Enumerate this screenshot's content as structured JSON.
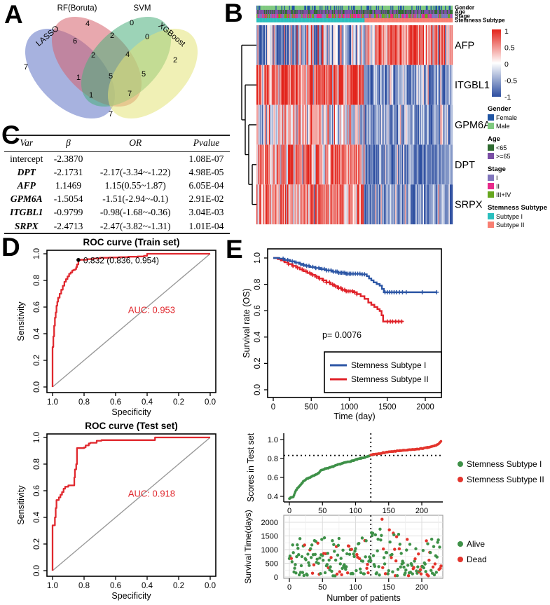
{
  "panels": {
    "A": {
      "letter": "A"
    },
    "B": {
      "letter": "B"
    },
    "C": {
      "letter": "C"
    },
    "D": {
      "letter": "D"
    },
    "E": {
      "letter": "E"
    }
  },
  "chart_data": [
    {
      "id": "venn",
      "type": "venn4",
      "sets": [
        {
          "name": "LASSO",
          "color": "#5F72C4"
        },
        {
          "name": "RF(Boruta)",
          "color": "#D5606C"
        },
        {
          "name": "SVM",
          "color": "#4BAF7C"
        },
        {
          "name": "XGBoost",
          "color": "#E4E478"
        }
      ],
      "regions": [
        {
          "sets": [
            "LASSO"
          ],
          "count": 7
        },
        {
          "sets": [
            "RF(Boruta)"
          ],
          "count": 4
        },
        {
          "sets": [
            "SVM"
          ],
          "count": 0
        },
        {
          "sets": [
            "XGBoost"
          ],
          "count": 2
        },
        {
          "sets": [
            "LASSO",
            "RF(Boruta)"
          ],
          "count": 6
        },
        {
          "sets": [
            "RF(Boruta)",
            "SVM"
          ],
          "count": 2
        },
        {
          "sets": [
            "SVM",
            "XGBoost"
          ],
          "count": 0
        },
        {
          "sets": [
            "LASSO",
            "SVM"
          ],
          "count": 1
        },
        {
          "sets": [
            "RF(Boruta)",
            "XGBoost"
          ],
          "count": 5
        },
        {
          "sets": [
            "LASSO",
            "XGBoost"
          ],
          "count": 7
        },
        {
          "sets": [
            "LASSO",
            "RF(Boruta)",
            "SVM"
          ],
          "count": 2
        },
        {
          "sets": [
            "RF(Boruta)",
            "SVM",
            "XGBoost"
          ],
          "count": 4
        },
        {
          "sets": [
            "LASSO",
            "SVM",
            "XGBoost"
          ],
          "count": 1
        },
        {
          "sets": [
            "LASSO",
            "RF(Boruta)",
            "XGBoost"
          ],
          "count": 7
        },
        {
          "sets": [
            "LASSO",
            "RF(Boruta)",
            "SVM",
            "XGBoost"
          ],
          "count": 5
        }
      ]
    },
    {
      "id": "heatmap",
      "type": "heatmap",
      "seed": 1234,
      "columns": 205,
      "split_index": 113,
      "genes": [
        {
          "name": "AFP",
          "left": [
            -0.35,
            0.55
          ],
          "right": [
            0.5,
            0.5
          ]
        },
        {
          "name": "ITGBL1",
          "left": [
            0.6,
            0.5
          ],
          "right": [
            -0.55,
            0.45
          ]
        },
        {
          "name": "GPM6A",
          "left": [
            0.1,
            0.5
          ],
          "right": [
            -0.5,
            0.35
          ]
        },
        {
          "name": "DPT",
          "left": [
            0.5,
            0.45
          ],
          "right": [
            -0.6,
            0.35
          ]
        },
        {
          "name": "SRPX",
          "left": [
            0.45,
            0.45
          ],
          "right": [
            -0.55,
            0.4
          ]
        }
      ],
      "annotations": {
        "rows": [
          "Gender",
          "Age",
          "Stage",
          "Stemness Subtype"
        ],
        "gender": {
          "labels": [
            "Female",
            "Male"
          ],
          "colors": [
            "#2155A3",
            "#7FC97F"
          ],
          "probs": [
            0.3,
            0.7
          ]
        },
        "age": {
          "labels": [
            "<65",
            ">=65"
          ],
          "colors": [
            "#2F6B31",
            "#7A4FA5"
          ],
          "probs": [
            0.45,
            0.55
          ]
        },
        "stage": {
          "labels": [
            "I",
            "II",
            "III+IV"
          ],
          "colors": [
            "#8075BC",
            "#E7298A",
            "#66A61E"
          ],
          "probs": [
            0.35,
            0.35,
            0.3
          ]
        },
        "subtype": {
          "labels": [
            "Subtype I",
            "Subtype II"
          ],
          "colors": [
            "#2BBFBE",
            "#F87F72"
          ]
        }
      },
      "colorbar": {
        "ticks": [
          "1",
          "0.5",
          "0",
          "-0.5",
          "-1"
        ],
        "top_color": "#E2231A",
        "mid_color": "#FFFFFF",
        "bottom_color": "#2D4EA0"
      }
    },
    {
      "id": "table",
      "type": "table",
      "headers": [
        "Var",
        "β",
        "OR",
        "Pvalue"
      ],
      "rows": [
        [
          "intercept",
          "-2.3870",
          "",
          "1.08E-07"
        ],
        [
          "DPT",
          "-2.1731",
          "-2.17(-3.34~-1.22)",
          "4.98E-05"
        ],
        [
          "AFP",
          "1.1469",
          "1.15(0.55~1.87)",
          "6.05E-04"
        ],
        [
          "GPM6A",
          "-1.5054",
          "-1.51(-2.94~-0.1)",
          "2.91E-02"
        ],
        [
          "ITGBL1",
          "-0.9799",
          "-0.98(-1.68~-0.36)",
          "3.04E-03"
        ],
        [
          "SRPX",
          "-2.4713",
          "-2.47(-3.82~-1.31)",
          "1.01E-04"
        ]
      ],
      "gene_rows": [
        1,
        2,
        3,
        4,
        5
      ]
    },
    {
      "id": "roc_train",
      "type": "line",
      "title": "ROC curve (Train set)",
      "xlabel": "Specificity",
      "ylabel": "Sensitivity",
      "xticks": [
        "1.0",
        "0.8",
        "0.6",
        "0.4",
        "0.2",
        "0.0"
      ],
      "yticks": [
        "0.0",
        "0.2",
        "0.4",
        "0.6",
        "0.8",
        "1.0"
      ],
      "color": "#E0282E",
      "diag_color": "#999999",
      "auc_label": "AUC: 0.953",
      "mark": {
        "label": "0.832 (0.836, 0.954)",
        "specificity": 0.836,
        "sensitivity": 0.954
      },
      "points": [
        [
          1.0,
          0.0
        ],
        [
          1.0,
          0.3
        ],
        [
          0.995,
          0.38
        ],
        [
          0.99,
          0.46
        ],
        [
          0.985,
          0.52
        ],
        [
          0.98,
          0.56
        ],
        [
          0.975,
          0.61
        ],
        [
          0.97,
          0.64
        ],
        [
          0.965,
          0.67
        ],
        [
          0.955,
          0.7
        ],
        [
          0.945,
          0.73
        ],
        [
          0.935,
          0.76
        ],
        [
          0.925,
          0.79
        ],
        [
          0.915,
          0.81
        ],
        [
          0.905,
          0.83
        ],
        [
          0.895,
          0.85
        ],
        [
          0.885,
          0.86
        ],
        [
          0.875,
          0.875
        ],
        [
          0.865,
          0.88
        ],
        [
          0.855,
          0.885
        ],
        [
          0.85,
          0.9
        ],
        [
          0.845,
          0.92
        ],
        [
          0.836,
          0.954
        ],
        [
          0.82,
          0.955
        ],
        [
          0.78,
          0.96
        ],
        [
          0.74,
          0.965
        ],
        [
          0.7,
          0.97
        ],
        [
          0.64,
          0.972
        ],
        [
          0.58,
          0.975
        ],
        [
          0.52,
          0.978
        ],
        [
          0.46,
          0.98
        ],
        [
          0.42,
          0.985
        ],
        [
          0.4,
          1.0
        ],
        [
          0.0,
          1.0
        ]
      ]
    },
    {
      "id": "roc_test",
      "type": "line",
      "title": "ROC curve (Test set)",
      "xlabel": "Specificity",
      "ylabel": "Sensitivity",
      "xticks": [
        "1.0",
        "0.8",
        "0.6",
        "0.4",
        "0.2",
        "0.0"
      ],
      "yticks": [
        "0.0",
        "0.2",
        "0.4",
        "0.6",
        "0.8",
        "1.0"
      ],
      "color": "#E0282E",
      "diag_color": "#999999",
      "auc_label": "AUC: 0.918",
      "points": [
        [
          1.0,
          0.0
        ],
        [
          1.0,
          0.34
        ],
        [
          0.985,
          0.4
        ],
        [
          0.98,
          0.47
        ],
        [
          0.975,
          0.53
        ],
        [
          0.96,
          0.55
        ],
        [
          0.95,
          0.57
        ],
        [
          0.94,
          0.59
        ],
        [
          0.93,
          0.615
        ],
        [
          0.92,
          0.63
        ],
        [
          0.9,
          0.64
        ],
        [
          0.87,
          0.64
        ],
        [
          0.862,
          0.7
        ],
        [
          0.858,
          0.76
        ],
        [
          0.85,
          0.8
        ],
        [
          0.845,
          0.92
        ],
        [
          0.8,
          0.925
        ],
        [
          0.79,
          0.94
        ],
        [
          0.77,
          0.955
        ],
        [
          0.76,
          0.96
        ],
        [
          0.73,
          0.96
        ],
        [
          0.72,
          0.975
        ],
        [
          0.69,
          0.98
        ],
        [
          0.36,
          0.98
        ],
        [
          0.35,
          1.0
        ],
        [
          0.0,
          1.0
        ]
      ]
    },
    {
      "id": "km",
      "type": "line",
      "xlabel": "Time (day)",
      "ylabel": "Survival rate (OS)",
      "p_label": "p= 0.0076",
      "xticks": [
        0,
        500,
        1000,
        1500,
        2000
      ],
      "yticks": [
        "0.0",
        "0.2",
        "0.4",
        "0.6",
        "0.8",
        "1.0"
      ],
      "xmax": 2200,
      "series": [
        {
          "name": "Stemness Subtype I",
          "color": "#2C56A5",
          "steps": [
            [
              0,
              1
            ],
            [
              80,
              0.995
            ],
            [
              150,
              0.985
            ],
            [
              220,
              0.975
            ],
            [
              280,
              0.965
            ],
            [
              340,
              0.955
            ],
            [
              380,
              0.948
            ],
            [
              420,
              0.94
            ],
            [
              480,
              0.932
            ],
            [
              550,
              0.924
            ],
            [
              620,
              0.916
            ],
            [
              700,
              0.906
            ],
            [
              780,
              0.896
            ],
            [
              850,
              0.888
            ],
            [
              950,
              0.88
            ],
            [
              1150,
              0.876
            ],
            [
              1230,
              0.862
            ],
            [
              1260,
              0.845
            ],
            [
              1290,
              0.83
            ],
            [
              1320,
              0.815
            ],
            [
              1360,
              0.802
            ],
            [
              1400,
              0.79
            ],
            [
              1430,
              0.765
            ],
            [
              1455,
              0.74
            ],
            [
              2150,
              0.74
            ]
          ],
          "censors": [
            130,
            190,
            250,
            300,
            360,
            400,
            440,
            470,
            520,
            560,
            600,
            640,
            670,
            700,
            730,
            760,
            790,
            820,
            840,
            860,
            880,
            900,
            920,
            940,
            960,
            980,
            1000,
            1020,
            1050,
            1080,
            1110,
            1140,
            1170,
            1200,
            1470,
            1500,
            1530,
            1560,
            1590,
            1620,
            1660,
            1700,
            1750,
            1960,
            2150
          ]
        },
        {
          "name": "Stemness Subtype II",
          "color": "#E02128",
          "steps": [
            [
              0,
              1
            ],
            [
              60,
              0.992
            ],
            [
              100,
              0.982
            ],
            [
              150,
              0.968
            ],
            [
              200,
              0.954
            ],
            [
              250,
              0.94
            ],
            [
              300,
              0.927
            ],
            [
              350,
              0.913
            ],
            [
              400,
              0.9
            ],
            [
              450,
              0.886
            ],
            [
              500,
              0.872
            ],
            [
              550,
              0.858
            ],
            [
              600,
              0.844
            ],
            [
              650,
              0.83
            ],
            [
              700,
              0.815
            ],
            [
              750,
              0.8
            ],
            [
              800,
              0.786
            ],
            [
              850,
              0.772
            ],
            [
              900,
              0.758
            ],
            [
              950,
              0.748
            ],
            [
              1050,
              0.74
            ],
            [
              1100,
              0.726
            ],
            [
              1150,
              0.71
            ],
            [
              1200,
              0.69
            ],
            [
              1250,
              0.662
            ],
            [
              1290,
              0.645
            ],
            [
              1330,
              0.628
            ],
            [
              1370,
              0.612
            ],
            [
              1400,
              0.598
            ],
            [
              1425,
              0.565
            ],
            [
              1445,
              0.518
            ],
            [
              1700,
              0.515
            ]
          ],
          "censors": [
            140,
            200,
            260,
            320,
            380,
            430,
            480,
            520,
            570,
            610,
            660,
            700,
            740,
            780,
            820,
            860,
            890,
            915,
            940,
            960,
            985,
            1010,
            1040,
            1070,
            1100,
            1500,
            1540,
            1570,
            1610,
            1650,
            1690
          ]
        }
      ]
    },
    {
      "id": "scores",
      "type": "scatter",
      "ylabel": "Scores in Test set",
      "yticks": [
        "1.0",
        "0.8",
        "0.6",
        "0.4"
      ],
      "xticks": [
        0,
        50,
        100,
        150,
        200
      ],
      "n": 230,
      "cutoff_index": 123,
      "cutoff_score": 0.832,
      "seed": 7,
      "legend": [
        {
          "label": "Stemness Subtype I",
          "color": "#3E9148"
        },
        {
          "label": "Stemness Subtype II",
          "color": "#E3342C"
        }
      ],
      "curve_subtype1": [
        [
          0,
          0.38
        ],
        [
          6,
          0.395
        ],
        [
          8,
          0.43
        ],
        [
          10,
          0.465
        ],
        [
          14,
          0.5
        ],
        [
          18,
          0.53
        ],
        [
          22,
          0.565
        ],
        [
          26,
          0.585
        ],
        [
          32,
          0.6
        ],
        [
          38,
          0.625
        ],
        [
          44,
          0.645
        ],
        [
          48,
          0.675
        ],
        [
          55,
          0.695
        ],
        [
          62,
          0.705
        ],
        [
          70,
          0.725
        ],
        [
          78,
          0.745
        ],
        [
          86,
          0.76
        ],
        [
          95,
          0.775
        ],
        [
          102,
          0.79
        ],
        [
          110,
          0.805
        ],
        [
          116,
          0.815
        ],
        [
          122,
          0.828
        ]
      ],
      "curve_subtype2": [
        [
          123,
          0.838
        ],
        [
          130,
          0.847
        ],
        [
          138,
          0.856
        ],
        [
          146,
          0.866
        ],
        [
          155,
          0.873
        ],
        [
          165,
          0.881
        ],
        [
          175,
          0.887
        ],
        [
          185,
          0.893
        ],
        [
          195,
          0.9
        ],
        [
          203,
          0.908
        ],
        [
          210,
          0.917
        ],
        [
          216,
          0.927
        ],
        [
          221,
          0.938
        ],
        [
          225,
          0.952
        ],
        [
          228,
          0.97
        ],
        [
          230,
          1.0
        ]
      ]
    },
    {
      "id": "surv",
      "type": "scatter",
      "ylabel": "Survival Time(days)",
      "xlabel": "Number of patients",
      "yticks": [
        0,
        500,
        1000,
        1500,
        2000
      ],
      "xticks": [
        0,
        50,
        100,
        150,
        200
      ],
      "n": 230,
      "cutoff_index": 123,
      "seed": 11,
      "dead_prob_left": 0.17,
      "dead_prob_right": 0.33,
      "ymax": 2150,
      "legend": [
        {
          "label": "Alive",
          "color": "#3E9148"
        },
        {
          "label": "Dead",
          "color": "#E3342C"
        }
      ]
    }
  ]
}
